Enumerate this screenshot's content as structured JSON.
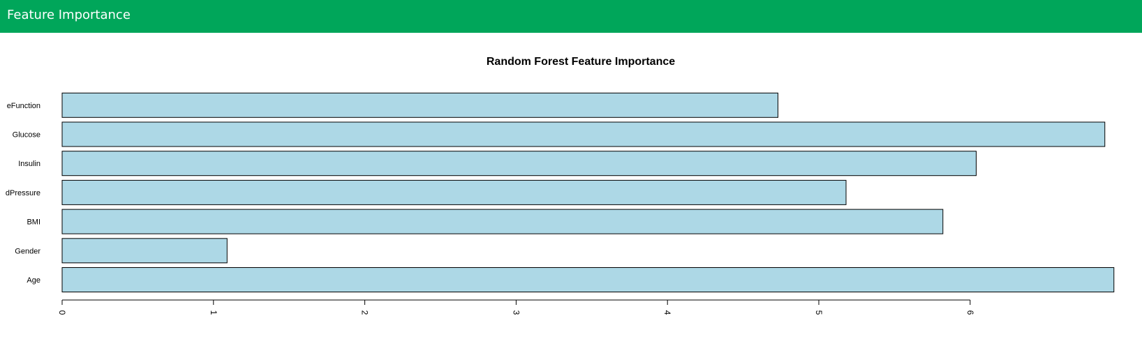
{
  "header": {
    "title": "Feature Importance"
  },
  "colors": {
    "header_bg": "#00a65a",
    "bar_fill": "#add8e6",
    "bar_stroke": "#000000"
  },
  "chart_data": {
    "type": "bar",
    "orientation": "horizontal",
    "title": "Random Forest Feature Importance",
    "xlabel": "",
    "ylabel": "",
    "categories": [
      "Age",
      "Gender",
      "BMI",
      "BloodPressure",
      "Insulin",
      "Glucose",
      "DiabetesPedigreeFunction"
    ],
    "visible_labels": [
      "Age",
      "Gender",
      "BMI",
      "dPressure",
      "Insulin",
      "Glucose",
      "eFunction"
    ],
    "values": [
      6.95,
      1.09,
      5.82,
      5.18,
      6.04,
      6.89,
      4.73
    ],
    "xlim": [
      0,
      6.95
    ],
    "xticks": [
      "0",
      "1",
      "2",
      "3",
      "4",
      "5",
      "6"
    ],
    "grid": false,
    "legend": "none"
  }
}
